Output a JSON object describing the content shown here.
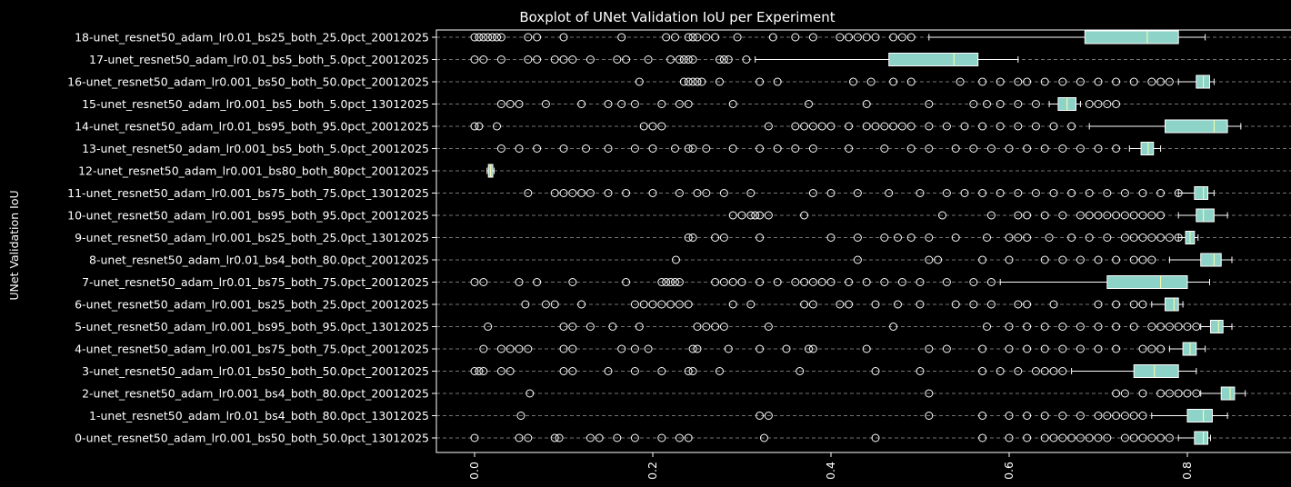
{
  "chart_data": {
    "type": "boxplot",
    "orientation": "horizontal",
    "title": "Boxplot of UNet Validation IoU per Experiment",
    "xlabel": "",
    "ylabel": "UNet Validation IoU",
    "xlim": [
      -0.05,
      0.905
    ],
    "xticks": [
      "0.0",
      "0.2",
      "0.4",
      "0.6",
      "0.8"
    ],
    "xtick_values": [
      0.0,
      0.2,
      0.4,
      0.6,
      0.8
    ],
    "grid": "horizontal-dashed",
    "colors": {
      "background": "#000000",
      "box_fill": "#8dd3c7",
      "median": "#ffffb3",
      "line": "#ffffff",
      "grid": "#9a9a9a"
    },
    "series": [
      {
        "name": "0-unet_resnet50_adam_lr0.001_bs50_both_50.0pct_13012025",
        "q1": 0.808,
        "median": 0.818,
        "q3": 0.823,
        "whisker_low": 0.79,
        "whisker_high": 0.826,
        "outliers": [
          0.0,
          0.05,
          0.06,
          0.09,
          0.095,
          0.13,
          0.14,
          0.16,
          0.18,
          0.21,
          0.23,
          0.24,
          0.325,
          0.45,
          0.57,
          0.6,
          0.62,
          0.64,
          0.65,
          0.66,
          0.67,
          0.68,
          0.69,
          0.7,
          0.71,
          0.73,
          0.74,
          0.75,
          0.76,
          0.77,
          0.78
        ]
      },
      {
        "name": "1-unet_resnet50_adam_lr0.01_bs4_both_80.0pct_13012025",
        "q1": 0.8,
        "median": 0.818,
        "q3": 0.828,
        "whisker_low": 0.76,
        "whisker_high": 0.845,
        "outliers": [
          0.052,
          0.32,
          0.33,
          0.51,
          0.57,
          0.6,
          0.62,
          0.64,
          0.66,
          0.68,
          0.7,
          0.71,
          0.72,
          0.73,
          0.74,
          0.75
        ]
      },
      {
        "name": "2-unet_resnet50_adam_lr0.001_bs4_both_80.0pct_20012025",
        "q1": 0.838,
        "median": 0.848,
        "q3": 0.853,
        "whisker_low": 0.815,
        "whisker_high": 0.865,
        "outliers": [
          0.062,
          0.51,
          0.72,
          0.73,
          0.75,
          0.77,
          0.78,
          0.79,
          0.8,
          0.81
        ]
      },
      {
        "name": "3-unet_resnet50_adam_lr0.01_bs50_both_50.0pct_20012025",
        "q1": 0.74,
        "median": 0.763,
        "q3": 0.79,
        "whisker_low": 0.67,
        "whisker_high": 0.81,
        "outliers": [
          0.0,
          0.005,
          0.01,
          0.03,
          0.04,
          0.1,
          0.11,
          0.15,
          0.18,
          0.21,
          0.24,
          0.245,
          0.275,
          0.365,
          0.45,
          0.5,
          0.57,
          0.59,
          0.61,
          0.63,
          0.64,
          0.65,
          0.66
        ]
      },
      {
        "name": "4-unet_resnet50_adam_lr0.001_bs75_both_75.0pct_20012025",
        "q1": 0.795,
        "median": 0.803,
        "q3": 0.81,
        "whisker_low": 0.78,
        "whisker_high": 0.82,
        "outliers": [
          0.01,
          0.03,
          0.04,
          0.05,
          0.06,
          0.1,
          0.11,
          0.165,
          0.18,
          0.195,
          0.245,
          0.25,
          0.285,
          0.32,
          0.35,
          0.375,
          0.38,
          0.44,
          0.51,
          0.53,
          0.57,
          0.6,
          0.62,
          0.64,
          0.66,
          0.68,
          0.7,
          0.72,
          0.75,
          0.76,
          0.77
        ]
      },
      {
        "name": "5-unet_resnet50_adam_lr0.001_bs95_both_95.0pct_13012025",
        "q1": 0.826,
        "median": 0.835,
        "q3": 0.84,
        "whisker_low": 0.815,
        "whisker_high": 0.85,
        "outliers": [
          0.015,
          0.1,
          0.11,
          0.13,
          0.155,
          0.185,
          0.25,
          0.26,
          0.27,
          0.28,
          0.33,
          0.47,
          0.575,
          0.6,
          0.62,
          0.64,
          0.66,
          0.68,
          0.7,
          0.72,
          0.74,
          0.76,
          0.77,
          0.78,
          0.79,
          0.8,
          0.81
        ]
      },
      {
        "name": "6-unet_resnet50_adam_lr0.001_bs25_both_25.0pct_20012025",
        "q1": 0.775,
        "median": 0.785,
        "q3": 0.79,
        "whisker_low": 0.76,
        "whisker_high": 0.795,
        "outliers": [
          0.057,
          0.08,
          0.09,
          0.12,
          0.18,
          0.19,
          0.2,
          0.21,
          0.22,
          0.23,
          0.24,
          0.29,
          0.31,
          0.37,
          0.38,
          0.41,
          0.42,
          0.45,
          0.475,
          0.5,
          0.54,
          0.56,
          0.58,
          0.61,
          0.62,
          0.65,
          0.7,
          0.72,
          0.74,
          0.75
        ]
      },
      {
        "name": "7-unet_resnet50_adam_lr0.01_bs75_both_75.0pct_20012025",
        "q1": 0.71,
        "median": 0.77,
        "q3": 0.8,
        "whisker_low": 0.59,
        "whisker_high": 0.825,
        "outliers": [
          0.0,
          0.01,
          0.05,
          0.07,
          0.11,
          0.17,
          0.21,
          0.215,
          0.22,
          0.225,
          0.23,
          0.27,
          0.28,
          0.29,
          0.3,
          0.32,
          0.34,
          0.36,
          0.37,
          0.38,
          0.39,
          0.4,
          0.42,
          0.44,
          0.46,
          0.48,
          0.5,
          0.53,
          0.56,
          0.58
        ]
      },
      {
        "name": "8-unet_resnet50_adam_lr0.01_bs4_both_80.0pct_20012025",
        "q1": 0.815,
        "median": 0.83,
        "q3": 0.838,
        "whisker_low": 0.78,
        "whisker_high": 0.85,
        "outliers": [
          0.226,
          0.43,
          0.51,
          0.52,
          0.57,
          0.6,
          0.64,
          0.66,
          0.68,
          0.7,
          0.72,
          0.74,
          0.75,
          0.76
        ]
      },
      {
        "name": "9-unet_resnet50_adam_lr0.001_bs25_both_25.0pct_13012025",
        "q1": 0.798,
        "median": 0.803,
        "q3": 0.808,
        "whisker_low": 0.79,
        "whisker_high": 0.812,
        "outliers": [
          0.24,
          0.245,
          0.27,
          0.28,
          0.32,
          0.4,
          0.43,
          0.46,
          0.475,
          0.49,
          0.51,
          0.54,
          0.575,
          0.6,
          0.61,
          0.62,
          0.645,
          0.67,
          0.69,
          0.71,
          0.73,
          0.74,
          0.75,
          0.76,
          0.77,
          0.78,
          0.79
        ]
      },
      {
        "name": "10-unet_resnet50_adam_lr0.001_bs95_both_95.0pct_20012025",
        "q1": 0.81,
        "median": 0.818,
        "q3": 0.83,
        "whisker_low": 0.79,
        "whisker_high": 0.845,
        "outliers": [
          0.29,
          0.3,
          0.31,
          0.315,
          0.32,
          0.33,
          0.37,
          0.525,
          0.58,
          0.61,
          0.62,
          0.64,
          0.66,
          0.68,
          0.69,
          0.7,
          0.71,
          0.72,
          0.73,
          0.74,
          0.75,
          0.76,
          0.77
        ]
      },
      {
        "name": "11-unet_resnet50_adam_lr0.001_bs75_both_75.0pct_13012025",
        "q1": 0.808,
        "median": 0.818,
        "q3": 0.823,
        "whisker_low": 0.79,
        "whisker_high": 0.83,
        "outliers": [
          0.06,
          0.09,
          0.1,
          0.11,
          0.12,
          0.13,
          0.15,
          0.17,
          0.2,
          0.23,
          0.25,
          0.26,
          0.28,
          0.31,
          0.38,
          0.4,
          0.43,
          0.465,
          0.5,
          0.53,
          0.55,
          0.57,
          0.59,
          0.61,
          0.63,
          0.65,
          0.67,
          0.69,
          0.71,
          0.73,
          0.75,
          0.77,
          0.79
        ]
      },
      {
        "name": "12-unet_resnet50_adam_lr0.001_bs80_both_80pct_20012025",
        "q1": 0.0155,
        "median": 0.018,
        "q3": 0.0205,
        "whisker_low": 0.014,
        "whisker_high": 0.022,
        "outliers": []
      },
      {
        "name": "13-unet_resnet50_adam_lr0.001_bs5_both_5.0pct_20012025",
        "q1": 0.748,
        "median": 0.756,
        "q3": 0.762,
        "whisker_low": 0.735,
        "whisker_high": 0.77,
        "outliers": [
          0.03,
          0.05,
          0.07,
          0.1,
          0.125,
          0.15,
          0.18,
          0.2,
          0.225,
          0.24,
          0.245,
          0.26,
          0.29,
          0.32,
          0.34,
          0.36,
          0.38,
          0.42,
          0.46,
          0.49,
          0.51,
          0.54,
          0.56,
          0.58,
          0.6,
          0.62,
          0.64,
          0.66,
          0.68,
          0.7,
          0.72
        ]
      },
      {
        "name": "14-unet_resnet50_adam_lr0.01_bs95_both_95.0pct_20012025",
        "q1": 0.775,
        "median": 0.83,
        "q3": 0.845,
        "whisker_low": 0.69,
        "whisker_high": 0.86,
        "outliers": [
          0.0,
          0.005,
          0.025,
          0.19,
          0.2,
          0.21,
          0.33,
          0.36,
          0.37,
          0.38,
          0.39,
          0.4,
          0.42,
          0.44,
          0.45,
          0.46,
          0.47,
          0.48,
          0.49,
          0.51,
          0.53,
          0.55,
          0.57,
          0.59,
          0.61,
          0.63,
          0.65,
          0.67
        ]
      },
      {
        "name": "15-unet_resnet50_adam_lr0.001_bs5_both_5.0pct_13012025",
        "q1": 0.655,
        "median": 0.665,
        "q3": 0.675,
        "whisker_low": 0.645,
        "whisker_high": 0.68,
        "outliers": [
          0.03,
          0.04,
          0.05,
          0.08,
          0.12,
          0.15,
          0.165,
          0.18,
          0.21,
          0.23,
          0.24,
          0.29,
          0.375,
          0.44,
          0.51,
          0.56,
          0.575,
          0.59,
          0.61,
          0.63,
          0.69,
          0.7,
          0.71,
          0.72
        ]
      },
      {
        "name": "16-unet_resnet50_adam_lr0.001_bs50_both_50.0pct_20012025",
        "q1": 0.81,
        "median": 0.818,
        "q3": 0.825,
        "whisker_low": 0.79,
        "whisker_high": 0.83,
        "outliers": [
          0.185,
          0.235,
          0.24,
          0.245,
          0.25,
          0.255,
          0.275,
          0.32,
          0.34,
          0.425,
          0.445,
          0.47,
          0.49,
          0.545,
          0.57,
          0.59,
          0.61,
          0.62,
          0.64,
          0.66,
          0.68,
          0.7,
          0.72,
          0.74,
          0.76,
          0.77,
          0.78
        ]
      },
      {
        "name": "17-unet_resnet50_adam_lr0.01_bs5_both_5.0pct_20012025",
        "q1": 0.465,
        "median": 0.538,
        "q3": 0.565,
        "whisker_low": 0.315,
        "whisker_high": 0.61,
        "outliers": [
          0.0,
          0.01,
          0.03,
          0.06,
          0.07,
          0.09,
          0.1,
          0.11,
          0.13,
          0.16,
          0.17,
          0.195,
          0.22,
          0.23,
          0.235,
          0.24,
          0.245,
          0.275,
          0.28,
          0.285,
          0.305
        ]
      },
      {
        "name": "18-unet_resnet50_adam_lr0.01_bs25_both_25.0pct_20012025",
        "q1": 0.685,
        "median": 0.755,
        "q3": 0.79,
        "whisker_low": 0.51,
        "whisker_high": 0.82,
        "outliers": [
          0.0,
          0.005,
          0.01,
          0.015,
          0.02,
          0.025,
          0.03,
          0.06,
          0.07,
          0.1,
          0.165,
          0.215,
          0.225,
          0.24,
          0.245,
          0.25,
          0.26,
          0.27,
          0.295,
          0.335,
          0.36,
          0.38,
          0.41,
          0.42,
          0.43,
          0.44,
          0.45,
          0.47,
          0.48,
          0.49
        ]
      }
    ]
  }
}
